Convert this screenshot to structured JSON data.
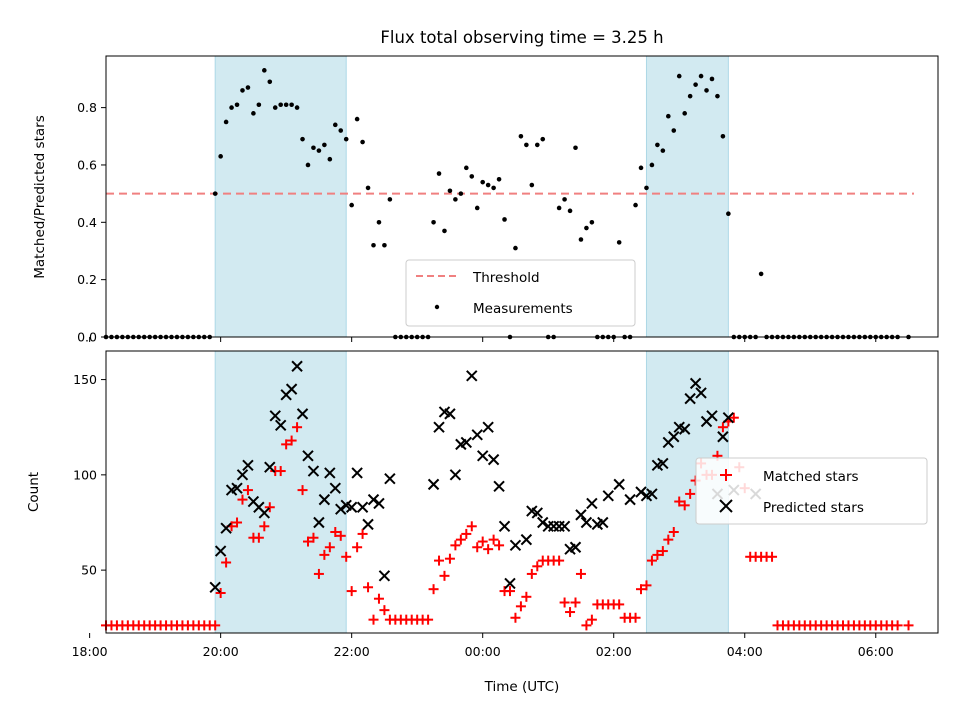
{
  "chart_data": [
    {
      "type": "scatter",
      "title": "Flux total observing time = 3.25 h",
      "ylabel": "Matched/Predicted stars",
      "xlim": [
        18.25,
        6.95
      ],
      "ylim": [
        0,
        0.98
      ],
      "y_ticks": [
        0.0,
        0.2,
        0.4,
        0.6,
        0.8
      ],
      "y_tick_labels": [
        "0.0",
        "0.2",
        "0.4",
        "0.6",
        "0.8"
      ],
      "shaded_intervals": [
        [
          "19:55",
          "21:55"
        ],
        [
          "02:30",
          "03:45"
        ]
      ],
      "shade_color": "#add8e6",
      "threshold": {
        "name": "Threshold",
        "value": 0.5,
        "x_range": [
          "18:15",
          "06:35"
        ],
        "color": "#f08080",
        "style": "dashed"
      },
      "series": [
        {
          "name": "Measurements",
          "color": "#000000",
          "marker": "dot",
          "x": [
            "18:15",
            "18:20",
            "18:25",
            "18:30",
            "18:35",
            "18:40",
            "18:45",
            "18:50",
            "18:55",
            "19:00",
            "19:05",
            "19:10",
            "19:15",
            "19:20",
            "19:25",
            "19:30",
            "19:35",
            "19:40",
            "19:45",
            "19:50",
            "19:55",
            "20:00",
            "20:05",
            "20:10",
            "20:15",
            "20:20",
            "20:25",
            "20:30",
            "20:35",
            "20:40",
            "20:45",
            "20:50",
            "20:55",
            "21:00",
            "21:05",
            "21:10",
            "21:15",
            "21:20",
            "21:25",
            "21:30",
            "21:35",
            "21:40",
            "21:45",
            "21:50",
            "21:55",
            "22:00",
            "22:05",
            "22:10",
            "22:15",
            "22:20",
            "22:25",
            "22:30",
            "22:35",
            "22:40",
            "22:45",
            "22:50",
            "22:55",
            "23:00",
            "23:05",
            "23:10",
            "23:15",
            "23:20",
            "23:25",
            "23:30",
            "23:35",
            "23:40",
            "23:45",
            "23:50",
            "23:55",
            "00:00",
            "00:05",
            "00:10",
            "00:15",
            "00:20",
            "00:25",
            "00:30",
            "00:35",
            "00:40",
            "00:45",
            "00:50",
            "00:55",
            "01:00",
            "01:05",
            "01:10",
            "01:15",
            "01:20",
            "01:25",
            "01:30",
            "01:35",
            "01:40",
            "01:45",
            "01:50",
            "01:55",
            "02:00",
            "02:05",
            "02:10",
            "02:15",
            "02:20",
            "02:25",
            "02:30",
            "02:35",
            "02:40",
            "02:45",
            "02:50",
            "02:55",
            "03:00",
            "03:05",
            "03:10",
            "03:15",
            "03:20",
            "03:25",
            "03:30",
            "03:35",
            "03:40",
            "03:45",
            "03:50",
            "03:55",
            "04:00",
            "04:05",
            "04:10",
            "04:15",
            "04:20",
            "04:25",
            "04:30",
            "04:35",
            "04:40",
            "04:45",
            "04:50",
            "04:55",
            "05:00",
            "05:05",
            "05:10",
            "05:15",
            "05:20",
            "05:25",
            "05:30",
            "05:35",
            "05:40",
            "05:45",
            "05:50",
            "05:55",
            "06:00",
            "06:05",
            "06:10",
            "06:15",
            "06:20",
            "06:30"
          ],
          "y": [
            0,
            0,
            0,
            0,
            0,
            0,
            0,
            0,
            0,
            0,
            0,
            0,
            0,
            0,
            0,
            0,
            0,
            0,
            0,
            0,
            0.5,
            0.63,
            0.75,
            0.8,
            0.81,
            0.86,
            0.87,
            0.78,
            0.81,
            0.93,
            0.89,
            0.8,
            0.81,
            0.81,
            0.81,
            0.8,
            0.69,
            0.6,
            0.66,
            0.65,
            0.67,
            0.62,
            0.74,
            0.72,
            0.69,
            0.46,
            0.76,
            0.68,
            0.52,
            0.32,
            0.4,
            0.32,
            0.48,
            0,
            0,
            0,
            0,
            0,
            0,
            0,
            0.4,
            0.57,
            0.37,
            0.51,
            0.48,
            0.5,
            0.59,
            0.56,
            0.45,
            0.54,
            0.53,
            0.52,
            0.55,
            0.41,
            0,
            0.31,
            0.7,
            0.67,
            0.53,
            0.67,
            0.69,
            0,
            0,
            0.45,
            0.48,
            0.44,
            0.66,
            0.34,
            0.38,
            0.4,
            0,
            0,
            0,
            0,
            0.33,
            0,
            0,
            0.46,
            0.59,
            0.52,
            0.6,
            0.67,
            0.65,
            0.77,
            0.72,
            0.91,
            0.78,
            0.84,
            0.88,
            0.91,
            0.86,
            0.9,
            0.84,
            0.7,
            0.43,
            0,
            0,
            0,
            0,
            0,
            0.22,
            0,
            0,
            0,
            0,
            0,
            0,
            0,
            0,
            0,
            0,
            0,
            0,
            0,
            0,
            0,
            0,
            0,
            0,
            0,
            0,
            0,
            0,
            0,
            0,
            0,
            0
          ]
        }
      ]
    },
    {
      "type": "scatter",
      "xlabel": "Time (UTC)",
      "ylabel": "Count",
      "xlim": [
        18.25,
        6.95
      ],
      "ylim": [
        17,
        165
      ],
      "x_ticks": [
        "18:00",
        "20:00",
        "22:00",
        "00:00",
        "02:00",
        "04:00",
        "06:00"
      ],
      "y_ticks": [
        50,
        100,
        150
      ],
      "y_tick_labels": [
        "50",
        "100",
        "150"
      ],
      "shaded_intervals": [
        [
          "19:55",
          "21:55"
        ],
        [
          "02:30",
          "03:45"
        ]
      ],
      "shade_color": "#add8e6",
      "series": [
        {
          "name": "Matched stars",
          "color": "#ff0000",
          "marker": "plus",
          "x": [
            "18:15",
            "18:20",
            "18:25",
            "18:30",
            "18:35",
            "18:40",
            "18:45",
            "18:50",
            "18:55",
            "19:00",
            "19:05",
            "19:10",
            "19:15",
            "19:20",
            "19:25",
            "19:30",
            "19:35",
            "19:40",
            "19:45",
            "19:50",
            "19:55",
            "20:00",
            "20:05",
            "20:10",
            "20:15",
            "20:20",
            "20:25",
            "20:30",
            "20:35",
            "20:40",
            "20:45",
            "20:50",
            "20:55",
            "21:00",
            "21:05",
            "21:10",
            "21:15",
            "21:20",
            "21:25",
            "21:30",
            "21:35",
            "21:40",
            "21:45",
            "21:50",
            "21:55",
            "22:00",
            "22:05",
            "22:10",
            "22:15",
            "22:20",
            "22:25",
            "22:30",
            "22:35",
            "22:40",
            "22:45",
            "22:50",
            "22:55",
            "23:00",
            "23:05",
            "23:10",
            "23:15",
            "23:20",
            "23:25",
            "23:30",
            "23:35",
            "23:40",
            "23:45",
            "23:50",
            "23:55",
            "00:00",
            "00:05",
            "00:10",
            "00:15",
            "00:20",
            "00:25",
            "00:30",
            "00:35",
            "00:40",
            "00:45",
            "00:50",
            "00:55",
            "01:00",
            "01:05",
            "01:10",
            "01:15",
            "01:20",
            "01:25",
            "01:30",
            "01:35",
            "01:40",
            "01:45",
            "01:50",
            "01:55",
            "02:00",
            "02:05",
            "02:10",
            "02:15",
            "02:20",
            "02:25",
            "02:30",
            "02:35",
            "02:40",
            "02:45",
            "02:50",
            "02:55",
            "03:00",
            "03:05",
            "03:10",
            "03:15",
            "03:20",
            "03:25",
            "03:30",
            "03:35",
            "03:40",
            "03:45",
            "03:50",
            "03:55",
            "04:00",
            "04:05",
            "04:10",
            "04:15",
            "04:20",
            "04:25",
            "04:30",
            "04:35",
            "04:40",
            "04:45",
            "04:50",
            "04:55",
            "05:00",
            "05:05",
            "05:10",
            "05:15",
            "05:20",
            "05:25",
            "05:30",
            "05:35",
            "05:40",
            "05:45",
            "05:50",
            "05:55",
            "06:00",
            "06:05",
            "06:10",
            "06:15",
            "06:20",
            "06:30"
          ],
          "y": [
            21,
            21,
            21,
            21,
            21,
            21,
            21,
            21,
            21,
            21,
            21,
            21,
            21,
            21,
            21,
            21,
            21,
            21,
            21,
            21,
            21,
            38,
            54,
            73,
            75,
            87,
            92,
            67,
            67,
            73,
            83,
            102,
            102,
            116,
            118,
            125,
            92,
            65,
            67,
            48,
            58,
            62,
            70,
            68,
            57,
            39,
            62,
            69,
            41,
            24,
            35,
            29,
            24,
            24,
            24,
            24,
            24,
            24,
            24,
            24,
            40,
            55,
            47,
            56,
            63,
            66,
            69,
            73,
            62,
            65,
            61,
            66,
            63,
            39,
            39,
            25,
            31,
            36,
            48,
            52,
            55,
            55,
            55,
            55,
            33,
            28,
            33,
            48,
            21,
            24,
            32,
            32,
            32,
            32,
            32,
            25,
            25,
            25,
            40,
            42,
            55,
            58,
            60,
            66,
            70,
            86,
            84,
            90,
            97,
            106,
            100,
            100,
            110,
            125,
            128,
            130,
            104,
            93,
            57,
            57,
            57,
            57,
            57,
            21,
            21,
            21,
            21,
            21,
            21,
            21,
            21,
            21,
            21,
            21,
            21,
            21,
            21,
            21,
            21,
            21,
            21,
            21,
            21,
            21,
            21,
            21,
            21
          ]
        },
        {
          "name": "Predicted stars",
          "color": "#000000",
          "marker": "x",
          "x": [
            "19:55",
            "20:00",
            "20:05",
            "20:10",
            "20:15",
            "20:20",
            "20:25",
            "20:30",
            "20:35",
            "20:40",
            "20:45",
            "20:50",
            "20:55",
            "21:00",
            "21:05",
            "21:10",
            "21:15",
            "21:20",
            "21:25",
            "21:30",
            "21:35",
            "21:40",
            "21:45",
            "21:50",
            "21:55",
            "22:00",
            "22:05",
            "22:10",
            "22:15",
            "22:20",
            "22:25",
            "22:30",
            "22:35",
            "23:15",
            "23:20",
            "23:25",
            "23:30",
            "23:35",
            "23:40",
            "23:45",
            "23:50",
            "23:55",
            "00:00",
            "00:05",
            "00:10",
            "00:15",
            "00:20",
            "00:25",
            "00:30",
            "00:40",
            "00:45",
            "00:50",
            "00:55",
            "01:00",
            "01:05",
            "01:10",
            "01:15",
            "01:20",
            "01:25",
            "01:30",
            "01:35",
            "01:40",
            "01:45",
            "01:50",
            "01:55",
            "02:05",
            "02:15",
            "02:25",
            "02:30",
            "02:35",
            "02:40",
            "02:45",
            "02:50",
            "02:55",
            "03:00",
            "03:05",
            "03:10",
            "03:15",
            "03:20",
            "03:25",
            "03:30",
            "03:35",
            "03:40",
            "03:45",
            "03:50",
            "04:10"
          ],
          "y": [
            41,
            60,
            72,
            92,
            93,
            100,
            105,
            86,
            83,
            80,
            104,
            131,
            126,
            142,
            145,
            157,
            132,
            110,
            102,
            75,
            87,
            101,
            93,
            82,
            84,
            83,
            101,
            83,
            74,
            87,
            85,
            47,
            98,
            95,
            125,
            133,
            132,
            100,
            116,
            117,
            152,
            121,
            110,
            125,
            108,
            94,
            73,
            43,
            63,
            66,
            81,
            80,
            75,
            73,
            73,
            73,
            73,
            61,
            62,
            79,
            75,
            85,
            74,
            75,
            89,
            95,
            87,
            91,
            89,
            90,
            105,
            106,
            117,
            120,
            125,
            124,
            140,
            148,
            143,
            128,
            131,
            90,
            120,
            130,
            92,
            90
          ]
        }
      ]
    }
  ],
  "legend_top": {
    "threshold_label": "Threshold",
    "measurements_label": "Measurements"
  },
  "legend_bottom": {
    "matched_label": "Matched stars",
    "predicted_label": "Predicted stars"
  }
}
